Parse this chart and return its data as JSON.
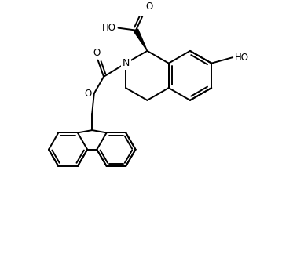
{
  "bg": "#ffffff",
  "lc": "#000000",
  "lw": 1.4,
  "fs": 8.5,
  "xlim": [
    -1,
    10
  ],
  "ylim": [
    -0.5,
    9.5
  ]
}
